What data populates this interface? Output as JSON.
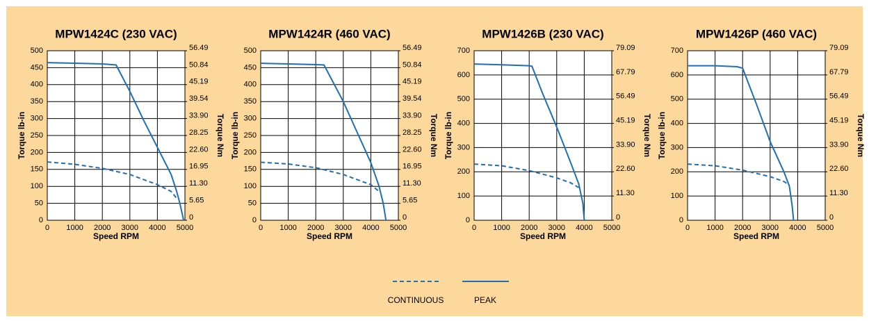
{
  "chart_data": [
    {
      "type": "line",
      "title": "MPW1424C (230 VAC)",
      "xlabel": "Speed RPM",
      "ylabel": "Torque lb-in",
      "y2label": "Torque Nm",
      "xlim": [
        0,
        5000
      ],
      "xticks": [
        0,
        1000,
        2000,
        3000,
        4000,
        5000
      ],
      "ylim": [
        0,
        500
      ],
      "yticks": [
        0,
        50,
        100,
        150,
        200,
        250,
        300,
        350,
        400,
        450,
        500
      ],
      "y2lim": [
        0,
        56.49
      ],
      "y2ticks": [
        0,
        5.65,
        {
          "value": 11.3,
          "label": "11.30"
        },
        16.95,
        {
          "value": 22.6,
          "label": "22.60"
        },
        28.25,
        {
          "value": 33.9,
          "label": "33.90"
        },
        39.54,
        45.19,
        50.84,
        56.49
      ],
      "grid": true,
      "series": [
        {
          "name": "CONTINUOUS",
          "color": "#1f6fb4",
          "style": "dashed",
          "x": [
            0,
            1000,
            2000,
            3000,
            4000,
            4500,
            4700
          ],
          "values": [
            172,
            165,
            153,
            135,
            105,
            85,
            65
          ]
        },
        {
          "name": "PEAK",
          "color": "#1f6fb4",
          "style": "solid",
          "x": [
            0,
            1000,
            2000,
            2500,
            3000,
            3500,
            4000,
            4500,
            4700,
            4800,
            4900,
            4950
          ],
          "values": [
            465,
            463,
            461,
            458,
            380,
            295,
            215,
            135,
            85,
            55,
            20,
            0
          ]
        }
      ]
    },
    {
      "type": "line",
      "title": "MPW1424R (460 VAC)",
      "xlabel": "Speed RPM",
      "ylabel": "Torque lb-in",
      "y2label": "Torque Nm",
      "xlim": [
        0,
        5000
      ],
      "xticks": [
        0,
        1000,
        2000,
        3000,
        4000,
        5000
      ],
      "ylim": [
        0,
        500
      ],
      "yticks": [
        0,
        50,
        100,
        150,
        200,
        250,
        300,
        350,
        400,
        450,
        500
      ],
      "y2lim": [
        0,
        56.49
      ],
      "y2ticks": [
        0,
        5.65,
        {
          "value": 11.3,
          "label": "11.30"
        },
        16.95,
        {
          "value": 22.6,
          "label": "22.60"
        },
        28.25,
        {
          "value": 33.9,
          "label": "33.90"
        },
        39.54,
        45.19,
        50.84,
        56.49
      ],
      "grid": true,
      "series": [
        {
          "name": "CONTINUOUS",
          "color": "#1f6fb4",
          "style": "dashed",
          "x": [
            0,
            1000,
            2000,
            3000,
            4000,
            4300
          ],
          "values": [
            171,
            166,
            155,
            135,
            105,
            85
          ]
        },
        {
          "name": "PEAK",
          "color": "#1f6fb4",
          "style": "solid",
          "x": [
            0,
            1000,
            2000,
            2300,
            3000,
            3500,
            4000,
            4300,
            4450,
            4550
          ],
          "values": [
            463,
            461,
            459,
            458,
            350,
            260,
            170,
            100,
            50,
            0
          ]
        }
      ]
    },
    {
      "type": "line",
      "title": "MPW1426B (230 VAC)",
      "xlabel": "Speed RPM",
      "ylabel": "Torque lb-in",
      "y2label": "Torque Nm",
      "xlim": [
        0,
        5000
      ],
      "xticks": [
        0,
        1000,
        2000,
        3000,
        4000,
        5000
      ],
      "ylim": [
        0,
        700
      ],
      "yticks": [
        0,
        100,
        200,
        300,
        400,
        500,
        600,
        700
      ],
      "y2lim": [
        0,
        79.09
      ],
      "y2ticks": [
        0,
        {
          "value": 11.3,
          "label": "11.30"
        },
        {
          "value": 22.6,
          "label": "22.60"
        },
        {
          "value": 33.9,
          "label": "33.90"
        },
        45.19,
        56.49,
        67.79,
        79.09
      ],
      "grid": true,
      "series": [
        {
          "name": "CONTINUOUS",
          "color": "#1f6fb4",
          "style": "dashed",
          "x": [
            0,
            1000,
            2000,
            3000,
            3500,
            3800
          ],
          "values": [
            232,
            225,
            205,
            175,
            155,
            135
          ]
        },
        {
          "name": "PEAK",
          "color": "#1f6fb4",
          "style": "solid",
          "x": [
            0,
            1000,
            2000,
            2100,
            2500,
            3000,
            3500,
            3800,
            3950,
            4000
          ],
          "values": [
            645,
            642,
            638,
            636,
            520,
            385,
            240,
            150,
            70,
            0
          ]
        }
      ]
    },
    {
      "type": "line",
      "title": "MPW1426P (460 VAC)",
      "xlabel": "Speed RPM",
      "ylabel": "Torque lb-in",
      "y2label": "Torque Nm",
      "xlim": [
        0,
        5000
      ],
      "xticks": [
        0,
        1000,
        2000,
        3000,
        4000,
        5000
      ],
      "ylim": [
        0,
        700
      ],
      "yticks": [
        0,
        100,
        200,
        300,
        400,
        500,
        600,
        700
      ],
      "y2lim": [
        0,
        79.09
      ],
      "y2ticks": [
        0,
        {
          "value": 11.3,
          "label": "11.30"
        },
        {
          "value": 22.6,
          "label": "22.60"
        },
        {
          "value": 33.9,
          "label": "33.90"
        },
        45.19,
        56.49,
        67.79,
        79.09
      ],
      "grid": true,
      "series": [
        {
          "name": "CONTINUOUS",
          "color": "#1f6fb4",
          "style": "dashed",
          "x": [
            0,
            1000,
            2000,
            3000,
            3500,
            3700
          ],
          "values": [
            232,
            225,
            207,
            180,
            160,
            145
          ]
        },
        {
          "name": "PEAK",
          "color": "#1f6fb4",
          "style": "solid",
          "x": [
            0,
            1000,
            1800,
            2000,
            2500,
            3000,
            3500,
            3700,
            3800,
            3850
          ],
          "values": [
            638,
            638,
            634,
            628,
            480,
            325,
            200,
            140,
            60,
            0
          ]
        }
      ]
    }
  ]
}
